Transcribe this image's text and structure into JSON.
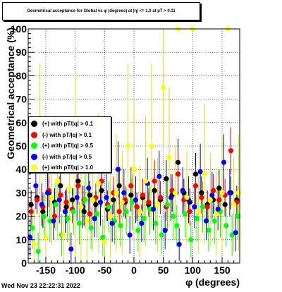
{
  "datestamp": "Wed Nov 23 22:22:31 2022",
  "chart_data": {
    "type": "scatter",
    "title": "Geometrical acceptance for Global vs φ (degrees) at |η| <= 1.0 at pT > 0.11",
    "xlabel": "φ (degrees)",
    "ylabel": "Geometrical acceptance (%)",
    "xlim": [
      -180,
      180
    ],
    "ylim": [
      0,
      100
    ],
    "xticks": [
      -150,
      -100,
      -50,
      0,
      50,
      100,
      150
    ],
    "yticks": [
      0,
      10,
      20,
      30,
      40,
      50,
      60,
      70,
      80,
      90,
      100
    ],
    "grid": true,
    "legend_position": "left",
    "series": [
      {
        "name": "(+) with pT/|q| > 0.1",
        "color": "#000000",
        "x": [
          -175,
          -165,
          -155,
          -145,
          -135,
          -125,
          -115,
          -105,
          -95,
          -85,
          -75,
          -65,
          -55,
          -45,
          -35,
          -25,
          -15,
          -5,
          5,
          15,
          25,
          35,
          45,
          55,
          65,
          75,
          85,
          95,
          105,
          115,
          125,
          135,
          145,
          155,
          165,
          175
        ],
        "y": [
          25,
          28,
          22,
          30,
          26,
          33,
          24,
          27,
          35,
          22,
          29,
          25,
          31,
          23,
          27,
          33,
          26,
          29,
          24,
          28,
          25,
          31,
          27,
          36,
          29,
          43,
          30,
          26,
          38,
          30,
          25,
          27,
          32,
          25,
          30,
          27
        ],
        "err": [
          6,
          5,
          7,
          6,
          6,
          6,
          7,
          5,
          8,
          6,
          6,
          6,
          7,
          5,
          6,
          8,
          7,
          7,
          6,
          6,
          5,
          8,
          6,
          8,
          7,
          10,
          6,
          6,
          9,
          7,
          6,
          6,
          8,
          5,
          7,
          6
        ]
      },
      {
        "name": "(-) with pT/|q| > 0.1",
        "color": "#ff0000",
        "x": [
          -175,
          -165,
          -155,
          -145,
          -135,
          -125,
          -115,
          -105,
          -95,
          -85,
          -75,
          -65,
          -55,
          -45,
          -35,
          -25,
          -15,
          -5,
          5,
          15,
          25,
          35,
          45,
          55,
          65,
          75,
          85,
          95,
          105,
          115,
          125,
          135,
          145,
          155,
          165,
          175
        ],
        "y": [
          22,
          27,
          24,
          31,
          20,
          29,
          26,
          23,
          33,
          27,
          21,
          28,
          35,
          25,
          30,
          22,
          27,
          33,
          24,
          29,
          26,
          35,
          28,
          24,
          31,
          38,
          27,
          22,
          33,
          28,
          24,
          31,
          27,
          29,
          48,
          26
        ],
        "err": [
          6,
          6,
          6,
          7,
          5,
          7,
          6,
          6,
          8,
          6,
          5,
          6,
          8,
          6,
          7,
          6,
          6,
          8,
          6,
          7,
          6,
          9,
          7,
          6,
          7,
          9,
          6,
          6,
          8,
          7,
          6,
          7,
          6,
          7,
          10,
          6
        ]
      },
      {
        "name": "(+) with pT/|q| > 0.5",
        "color": "#00ff00",
        "x": [
          -173,
          -163,
          -153,
          -143,
          -133,
          -123,
          -113,
          -103,
          -93,
          -83,
          -73,
          -63,
          -53,
          -43,
          -33,
          -23,
          -13,
          -3,
          7,
          17,
          27,
          37,
          47,
          57,
          67,
          73,
          87,
          97,
          107,
          117,
          127,
          137,
          147,
          157,
          167,
          177
        ],
        "y": [
          15,
          5,
          20,
          18,
          25,
          12,
          19,
          22,
          17,
          27,
          15,
          21,
          11,
          24,
          18,
          16,
          22,
          26,
          14,
          19,
          23,
          17,
          12,
          25,
          20,
          16,
          21,
          10,
          19,
          24,
          14,
          18,
          22,
          16,
          12,
          20
        ],
        "err": [
          9,
          8,
          10,
          9,
          11,
          9,
          10,
          10,
          9,
          12,
          9,
          10,
          8,
          11,
          10,
          9,
          10,
          12,
          9,
          10,
          11,
          9,
          8,
          11,
          10,
          9,
          10,
          8,
          10,
          11,
          9,
          10,
          11,
          9,
          9,
          10
        ]
      },
      {
        "name": "(-) with pT/|q| > 0.5",
        "color": "#0000ff",
        "x": [
          -177,
          -167,
          -157,
          -147,
          -137,
          -127,
          -117,
          -107,
          -97,
          -87,
          -77,
          -67,
          -57,
          -47,
          -37,
          -27,
          -17,
          -7,
          3,
          13,
          23,
          33,
          43,
          53,
          63,
          77,
          83,
          93,
          103,
          113,
          123,
          133,
          143,
          153,
          163,
          173
        ],
        "y": [
          11,
          33,
          25,
          30,
          18,
          27,
          22,
          6,
          28,
          24,
          32,
          19,
          26,
          28,
          17,
          40,
          30,
          12,
          27,
          17,
          34,
          23,
          37,
          14,
          28,
          8,
          31,
          27,
          24,
          39,
          18,
          29,
          23,
          43,
          30,
          13
        ],
        "err": [
          8,
          10,
          9,
          10,
          8,
          10,
          9,
          7,
          10,
          9,
          11,
          8,
          10,
          10,
          8,
          12,
          10,
          8,
          10,
          8,
          11,
          9,
          11,
          8,
          10,
          7,
          10,
          10,
          9,
          12,
          8,
          10,
          9,
          12,
          10,
          8
        ]
      },
      {
        "name": "(+) with pT/|q| > 1.0",
        "color": "#ffff00",
        "x": [
          -170,
          -160,
          -150,
          -140,
          -130,
          -120,
          -110,
          -100,
          -90,
          -80,
          -70,
          -60,
          -50,
          -40,
          -30,
          -20,
          -10,
          0,
          10,
          20,
          30,
          40,
          50,
          60,
          70,
          75,
          90,
          100,
          110,
          120,
          130,
          140,
          150,
          160,
          170,
          178
        ],
        "y": [
          8,
          45,
          11,
          28,
          35,
          12,
          32,
          42,
          24,
          18,
          27,
          34,
          9,
          20,
          30,
          26,
          50,
          40,
          22,
          35,
          50,
          25,
          75,
          45,
          30,
          100,
          28,
          100,
          22,
          38,
          27,
          21,
          30,
          100,
          25,
          30
        ],
        "err": [
          15,
          40,
          15,
          20,
          25,
          18,
          28,
          40,
          24,
          20,
          22,
          30,
          15,
          18,
          25,
          22,
          35,
          30,
          20,
          28,
          35,
          20,
          25,
          30,
          20,
          0,
          20,
          0,
          18,
          30,
          20,
          18,
          25,
          0,
          20,
          25
        ]
      }
    ]
  }
}
